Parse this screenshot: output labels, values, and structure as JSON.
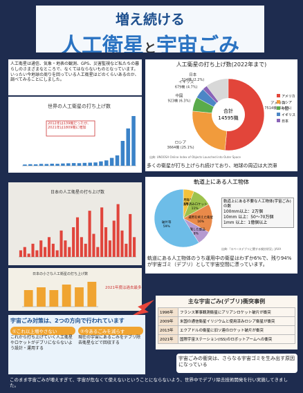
{
  "title": {
    "line1": "増え続ける",
    "line2a": "人工衛星",
    "line2b": "と",
    "line2c": "宇宙ごみ"
  },
  "intro": "人工衛星は通信、気象・地表の観測、GPS、災害監視など私たちの暮らしのさまざまなところで、なくてはならないものとなっています。いったい今地球の周りを回っている人工衛星はどのくらいあるのか、調べてみることにしました。",
  "launch_chart": {
    "title": "世界の人工衛星の打ち上げ数",
    "annotation": "2012年は139機だったが、2021年は1809機に増加",
    "values": [
      60,
      75,
      70,
      90,
      85,
      100,
      95,
      110,
      120,
      130,
      125,
      140,
      150,
      160,
      210,
      260,
      380,
      500,
      1200,
      1800,
      2400
    ],
    "ylim": [
      0,
      2600
    ],
    "color": "#3b83c8"
  },
  "pie": {
    "title": "人工衛星の打ち上げ数(2022年まで)",
    "center_label": "合計",
    "center_value": "14595機",
    "slices": [
      {
        "name": "アメリカ",
        "label": "7514機\n(51.5%)",
        "value": 7514,
        "color": "#e2453a"
      },
      {
        "name": "ロシア",
        "label": "3664機\n(25.1%)",
        "value": 3664,
        "color": "#f19b3c"
      },
      {
        "name": "中国",
        "label": "923機\n(6.3%)",
        "value": 923,
        "color": "#5aab4b"
      },
      {
        "name": "イギリス",
        "label": "679機\n(4.7%)",
        "value": 679,
        "color": "#4c86c6"
      },
      {
        "name": "日本",
        "label": "314機\n(2.2%)",
        "value": 314,
        "color": "#8a63b7"
      }
    ],
    "total": 14595,
    "source": "出典: UNOOSA Online Index of Objects Launched into Outer Space"
  },
  "pie_caption": "多くの衛星が打ち上げられ続けており、地球の周辺は大渋滞",
  "red_chart": {
    "title": "日本の人工衛星の打ち上げ数",
    "values": [
      2,
      3,
      1,
      4,
      2,
      5,
      3,
      6,
      4,
      2,
      8,
      5,
      3,
      9,
      12,
      6,
      4,
      14,
      7,
      3,
      15,
      9,
      5,
      11,
      16,
      8,
      4,
      13,
      6
    ],
    "ylim": [
      0,
      18
    ],
    "color": "#e0453c"
  },
  "orange_chart": {
    "title": "日本の小さな人工衛星の打ち上げ数",
    "note": "2021年度は過去最多",
    "values": [
      6,
      7,
      6,
      8,
      7,
      9
    ],
    "ylim": [
      0,
      10
    ],
    "color": "#f0a431"
  },
  "orbit": {
    "title": "軌道上にある人工物体",
    "slices": [
      {
        "name": "運用衛星",
        "value": 6,
        "label": "6%",
        "color": "#f3c23c"
      },
      {
        "name": "使用済みロケット",
        "value": 11,
        "label": "11%",
        "color": "#9ec24d"
      },
      {
        "name": "運用を終えた衛星",
        "value": 16,
        "label": "16%",
        "color": "#e98a4a"
      },
      {
        "name": "分離した部品",
        "value": 8,
        "label": "8%",
        "color": "#b59ad0"
      },
      {
        "name": "破片等",
        "value": 59,
        "label": "59%",
        "color": "#6dbde8"
      }
    ],
    "note": "軌道上にある不要な人工物体(宇宙ごみ)の数",
    "sizes": [
      "100mm以上：2万個",
      "10mm 以上：50～70万個",
      "1mm 以上：1億個以上"
    ],
    "source": "出典:「スペースデブリに関する検討状況」JAXA"
  },
  "orbit_caption": "軌道にある人工物体のうち運用中の衛星はわずか6%で、残り94%が宇宙ゴミ（デブリ）として宇宙空間に漂っています。",
  "collisions": {
    "title": "主な宇宙ごみ(デブリ)衝突事例",
    "rows": [
      [
        "1996年",
        "フランス軍事観測衛星にアリアンロケット破片が衝突"
      ],
      [
        "2009年",
        "米国の通信衛星イリジウムと使用済みロシア衛星が衝突"
      ],
      [
        "2013年",
        "エクアドルの衛星に旧ソ連のロケット破片が衝突"
      ],
      [
        "2021年",
        "国際宇宙ステーション(ISS)のロボットアームへの衝突"
      ]
    ]
  },
  "measures": {
    "title": "宇宙ごみ対策は、2つの方向で行われています",
    "a_title": "①これ以上増やさない",
    "a_text": "これから打ち上げていく人工衛星やロケットがデブリにならないよう設計・運用する",
    "b_title": "②今あるごみを減らす",
    "b_text": "現在の宇宙にあるごみをデブリ除去衛星などで回収する"
  },
  "collision_note": "宇宙ごみの衝突は、さらなる宇宙ゴミを生み出す原因になっている",
  "footer": "このまま宇宙ごみが増えすぎて、宇宙が危なくて使えないということにならないよう、世界中でデブリ除去技術開発を行い実施してきました。"
}
